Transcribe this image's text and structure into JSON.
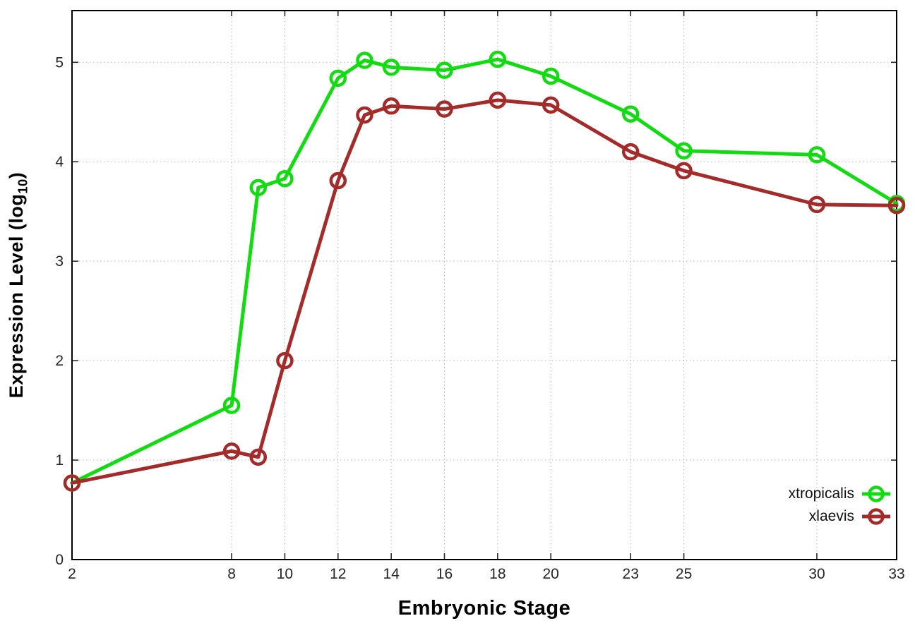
{
  "chart_data": {
    "type": "line",
    "title": "",
    "xlabel": "Embryonic Stage",
    "ylabel": "Expression Level (log10)",
    "ylabel_parts": {
      "prefix": "Expression Level (log",
      "subscript": "10",
      "suffix": ")"
    },
    "x": [
      2,
      8,
      9,
      10,
      12,
      13,
      14,
      16,
      18,
      20,
      23,
      25,
      30,
      33
    ],
    "series": [
      {
        "name": "xtropicalis",
        "color": "#10dc10",
        "marker": "open-circle",
        "values": [
          0.77,
          1.55,
          3.74,
          3.83,
          4.84,
          5.02,
          4.95,
          4.92,
          5.03,
          4.86,
          4.48,
          4.11,
          4.07,
          3.58
        ]
      },
      {
        "name": "xlaevis",
        "color": "#a52a2a",
        "marker": "open-circle",
        "values": [
          0.77,
          1.09,
          1.03,
          2.0,
          3.81,
          4.47,
          4.56,
          4.53,
          4.62,
          4.57,
          4.1,
          3.91,
          3.57,
          3.56
        ]
      }
    ],
    "xticks": [
      2,
      8,
      10,
      12,
      14,
      16,
      18,
      20,
      23,
      25,
      30,
      33
    ],
    "yticks": [
      0,
      1,
      2,
      3,
      4,
      5
    ],
    "xlim": [
      2,
      33
    ],
    "ylim": [
      0,
      5.52
    ],
    "grid": true,
    "grid_style": "dotted",
    "legend_position": "inside-right-bottom",
    "colors": {
      "border": "#000000",
      "gridline": "#b5b5b5",
      "tick": "#2a2a2a",
      "tick_label": "#262626",
      "background": "#ffffff"
    }
  }
}
